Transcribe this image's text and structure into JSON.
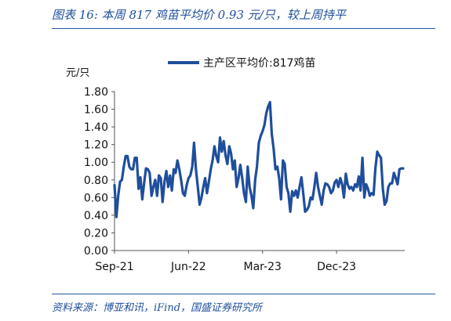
{
  "header": {
    "title": "图表 16:  本周 817 鸡苗平均价 0.93 元/只，较上周持平"
  },
  "footer": {
    "source": "资料来源：博亚和讯，iFind，国盛证券研究所"
  },
  "colors": {
    "series": "#1f4e9c",
    "accent": "#2a55a3",
    "axis": "#555555"
  },
  "chart_data": {
    "type": "line",
    "title": "",
    "xlabel": "",
    "ylabel": "元/只",
    "ylim": [
      0.0,
      1.8
    ],
    "ytick_labels": [
      "0.00",
      "0.20",
      "0.40",
      "0.60",
      "0.80",
      "1.00",
      "1.20",
      "1.40",
      "1.60",
      "1.80"
    ],
    "xtick_labels": [
      "Sep-21",
      "Jun-22",
      "Mar-23",
      "Dec-23"
    ],
    "xtick_positions": [
      0,
      40,
      80,
      120
    ],
    "legend": "top-center",
    "grid": false,
    "series": [
      {
        "name": "主产区平均价:817鸡苗",
        "values": [
          0.74,
          0.38,
          0.62,
          0.78,
          0.8,
          0.95,
          1.07,
          1.07,
          0.95,
          0.92,
          0.92,
          1.05,
          1.05,
          0.7,
          0.83,
          0.58,
          0.76,
          0.93,
          0.92,
          0.88,
          0.62,
          0.72,
          0.8,
          0.62,
          0.85,
          0.82,
          0.55,
          0.78,
          0.9,
          0.72,
          0.85,
          0.68,
          0.92,
          0.88,
          1.02,
          0.92,
          0.8,
          0.65,
          0.62,
          0.74,
          0.82,
          0.85,
          0.95,
          1.22,
          0.92,
          0.72,
          0.52,
          0.6,
          0.72,
          0.82,
          0.65,
          0.78,
          0.92,
          1.02,
          1.18,
          1.07,
          1.0,
          1.28,
          1.12,
          1.24,
          1.08,
          0.98,
          1.18,
          1.1,
          0.92,
          1.02,
          0.72,
          0.82,
          0.97,
          0.82,
          0.65,
          0.55,
          0.95,
          0.72,
          0.62,
          0.48,
          0.8,
          0.95,
          1.22,
          1.3,
          1.35,
          1.42,
          1.55,
          1.63,
          1.68,
          1.32,
          1.15,
          0.92,
          0.95,
          0.82,
          0.58,
          1.02,
          0.98,
          0.72,
          0.65,
          0.44,
          0.67,
          0.62,
          0.68,
          0.6,
          0.72,
          0.83,
          0.65,
          0.44,
          0.46,
          0.5,
          0.6,
          0.58,
          0.72,
          0.88,
          0.72,
          0.62,
          0.52,
          0.68,
          0.76,
          0.75,
          0.72,
          0.65,
          0.68,
          0.77,
          0.8,
          0.72,
          0.82,
          0.75,
          0.6,
          0.87,
          0.75,
          0.7,
          0.72,
          0.68,
          0.75,
          0.72,
          0.84,
          0.68,
          1.05,
          0.6,
          0.75,
          0.7,
          0.62,
          0.65,
          0.63,
          0.93,
          1.12,
          1.08,
          1.05,
          0.7,
          0.52,
          0.56,
          0.72,
          0.76,
          0.76,
          0.88,
          0.82,
          0.75,
          0.92,
          0.93,
          0.93
        ]
      }
    ]
  }
}
